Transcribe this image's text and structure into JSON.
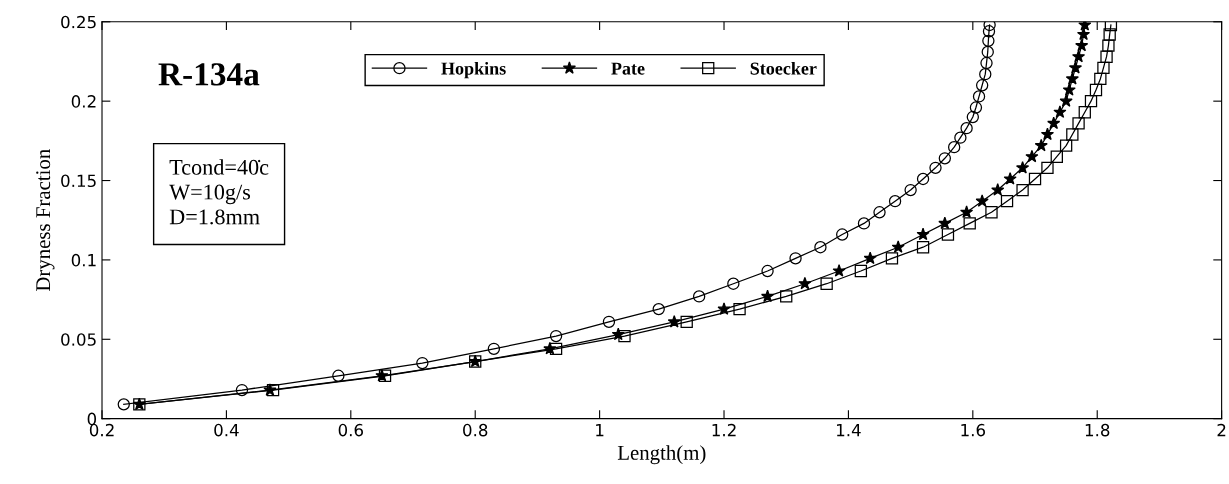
{
  "chart_data": {
    "type": "line",
    "xlabel": "Length(m)",
    "ylabel": "Dryness Fraction",
    "xlim": [
      0.2,
      2
    ],
    "xticks": [
      0.2,
      0.4,
      0.6,
      0.8,
      1,
      1.2,
      1.4,
      1.6,
      1.8,
      2
    ],
    "ylim": [
      0,
      0.25
    ],
    "yticks": [
      0,
      0.05,
      0.1,
      0.15,
      0.2,
      0.25
    ],
    "grid": false,
    "legend": "top",
    "line_style": "solid",
    "annotations": [
      "R-134a",
      "Tcond=40̇c\nW=10g/s\nD=1.8mm"
    ],
    "series": [
      {
        "name": "Hopkins",
        "color": "#000000",
        "marker": "circle",
        "x": [
          0.235,
          0.425,
          0.58,
          0.715,
          0.83,
          0.93,
          1.015,
          1.095,
          1.16,
          1.215,
          1.27,
          1.315,
          1.355,
          1.39,
          1.425,
          1.45,
          1.475,
          1.5,
          1.52,
          1.54,
          1.555,
          1.57,
          1.58,
          1.59,
          1.6,
          1.605,
          1.61,
          1.615,
          1.62,
          1.622,
          1.624,
          1.625,
          1.626,
          1.627
        ],
        "values": [
          0.009,
          0.018,
          0.027,
          0.035,
          0.044,
          0.052,
          0.061,
          0.069,
          0.077,
          0.085,
          0.093,
          0.101,
          0.108,
          0.116,
          0.123,
          0.13,
          0.137,
          0.144,
          0.151,
          0.158,
          0.164,
          0.171,
          0.177,
          0.183,
          0.19,
          0.196,
          0.203,
          0.21,
          0.217,
          0.224,
          0.231,
          0.238,
          0.244,
          0.248
        ]
      },
      {
        "name": "Pate",
        "color": "#000000",
        "marker": "star",
        "x": [
          0.26,
          0.47,
          0.65,
          0.8,
          0.92,
          1.03,
          1.12,
          1.2,
          1.27,
          1.33,
          1.385,
          1.435,
          1.48,
          1.52,
          1.555,
          1.59,
          1.615,
          1.64,
          1.66,
          1.68,
          1.695,
          1.71,
          1.72,
          1.73,
          1.74,
          1.75,
          1.755,
          1.76,
          1.765,
          1.77,
          1.775,
          1.778,
          1.78
        ],
        "values": [
          0.009,
          0.018,
          0.027,
          0.036,
          0.044,
          0.053,
          0.061,
          0.069,
          0.077,
          0.085,
          0.093,
          0.101,
          0.108,
          0.116,
          0.123,
          0.13,
          0.137,
          0.144,
          0.151,
          0.158,
          0.165,
          0.172,
          0.179,
          0.186,
          0.193,
          0.2,
          0.207,
          0.214,
          0.221,
          0.228,
          0.235,
          0.242,
          0.248
        ]
      },
      {
        "name": "Stoecker",
        "color": "#000000",
        "marker": "square",
        "x": [
          0.26,
          0.475,
          0.655,
          0.8,
          0.93,
          1.04,
          1.14,
          1.225,
          1.3,
          1.365,
          1.42,
          1.47,
          1.52,
          1.56,
          1.595,
          1.63,
          1.655,
          1.68,
          1.7,
          1.72,
          1.735,
          1.75,
          1.76,
          1.77,
          1.78,
          1.79,
          1.798,
          1.805,
          1.81,
          1.815,
          1.818,
          1.82,
          1.822
        ],
        "values": [
          0.009,
          0.018,
          0.027,
          0.036,
          0.044,
          0.052,
          0.061,
          0.069,
          0.077,
          0.085,
          0.093,
          0.101,
          0.108,
          0.116,
          0.123,
          0.13,
          0.137,
          0.144,
          0.151,
          0.158,
          0.165,
          0.172,
          0.179,
          0.186,
          0.193,
          0.2,
          0.207,
          0.214,
          0.221,
          0.228,
          0.235,
          0.242,
          0.248
        ]
      }
    ]
  }
}
